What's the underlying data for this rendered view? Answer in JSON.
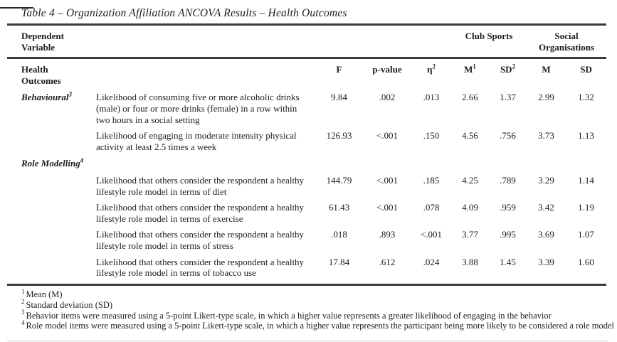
{
  "title": "Table 4 – Organization Affiliation ANCOVA Results – Health Outcomes",
  "header": {
    "dependent_variable": "Dependent\nVariable",
    "club_sports": "Club Sports",
    "social_organisations": "Social\nOrganisations",
    "health_outcomes": "Health\nOutcomes",
    "columns": [
      {
        "label": "F",
        "sup": ""
      },
      {
        "label": "p-value",
        "sup": ""
      },
      {
        "label": "η",
        "sup": "2"
      },
      {
        "label": "M",
        "sup": "1"
      },
      {
        "label": "SD",
        "sup": "2"
      },
      {
        "label": "M",
        "sup": ""
      },
      {
        "label": "SD",
        "sup": ""
      }
    ]
  },
  "sections": [
    {
      "label": "Behavioural",
      "label_sup": "3",
      "rows": [
        {
          "description": "Likelihood of consuming five or more alcoholic drinks (male) or four or more drinks (female) in a row within two hours in a social setting",
          "values": [
            "9.84",
            ".002",
            ".013",
            "2.66",
            "1.37",
            "2.99",
            "1.32"
          ]
        },
        {
          "description": "Likelihood of engaging in moderate intensity physical activity at least 2.5 times a week",
          "values": [
            "126.93",
            "<.001",
            ".150",
            "4.56",
            ".756",
            "3.73",
            "1.13"
          ]
        }
      ]
    },
    {
      "label": "Role Modelling",
      "label_sup": "4",
      "rows": [
        {
          "description": "Likelihood that others consider the respondent a healthy lifestyle role model in terms of diet",
          "values": [
            "144.79",
            "<.001",
            ".185",
            "4.25",
            ".789",
            "3.29",
            "1.14"
          ]
        },
        {
          "description": "Likelihood that others consider the respondent a healthy lifestyle role model in terms of exercise",
          "values": [
            "61.43",
            "<.001",
            ".078",
            "4.09",
            ".959",
            "3.42",
            "1.19"
          ]
        },
        {
          "description": "Likelihood that others consider the respondent a healthy lifestyle role model in terms of stress",
          "values": [
            ".018",
            ".893",
            "<.001",
            "3.77",
            ".995",
            "3.69",
            "1.07"
          ]
        },
        {
          "description": "Likelihood that others consider the respondent a healthy lifestyle role model in terms of tobacco use",
          "values": [
            "17.84",
            ".612",
            ".024",
            "3.88",
            "1.45",
            "3.39",
            "1.60"
          ]
        }
      ]
    }
  ],
  "footnotes": [
    {
      "sup": "1",
      "text": "Mean (M)"
    },
    {
      "sup": "2",
      "text": "Standard deviation (SD)"
    },
    {
      "sup": "3",
      "text": "Behavior items were measured using a 5-point Likert-type scale, in which a higher value represents a greater likelihood of engaging in the behavior"
    },
    {
      "sup": "4",
      "text": "Role model items were measured using a 5-point Likert-type scale, in which a higher value represents the participant being more likely to be considered a role model"
    }
  ]
}
